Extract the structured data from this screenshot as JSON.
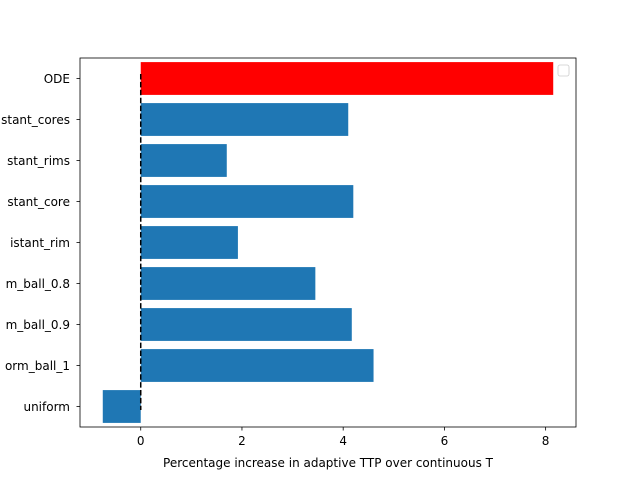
{
  "chart_data": {
    "type": "bar",
    "orientation": "horizontal",
    "categories": [
      "ODE",
      "stant_cores",
      "stant_rims",
      "stant_core",
      "istant_rim",
      "m_ball_0.8",
      "m_ball_0.9",
      "orm_ball_1",
      "uniform"
    ],
    "values": [
      8.15,
      4.1,
      1.7,
      4.2,
      1.92,
      3.45,
      4.17,
      4.6,
      -0.75
    ],
    "bar_colors": [
      "#ff0000",
      "#1f77b4",
      "#1f77b4",
      "#1f77b4",
      "#1f77b4",
      "#1f77b4",
      "#1f77b4",
      "#1f77b4",
      "#1f77b4"
    ],
    "xlabel": "Percentage increase in adaptive TTP over continuous T",
    "ylabel": "",
    "title": "",
    "xlim": [
      -1.2,
      8.6
    ],
    "xticks": [
      0,
      2,
      4,
      6,
      8
    ],
    "xtick_labels": [
      "0",
      "2",
      "4",
      "6",
      "8"
    ],
    "reference_line": {
      "x": 0,
      "style": "dashed",
      "color": "#000000"
    },
    "legend": {
      "placement": "top-right",
      "entries": []
    },
    "grid": false
  }
}
